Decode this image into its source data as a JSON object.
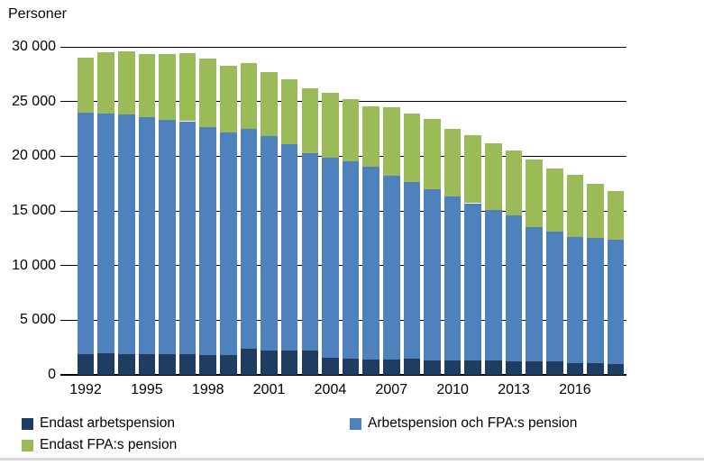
{
  "chart_data": {
    "type": "bar",
    "stacked": true,
    "ylabel": "Personer",
    "categories": [
      1992,
      1993,
      1994,
      1995,
      1996,
      1997,
      1998,
      1999,
      2000,
      2001,
      2002,
      2003,
      2004,
      2005,
      2006,
      2007,
      2008,
      2009,
      2010,
      2011,
      2012,
      2013,
      2014,
      2015,
      2016,
      2017,
      2018
    ],
    "x_tick_labels": [
      "1992",
      "1995",
      "1998",
      "2001",
      "2004",
      "2007",
      "2010",
      "2013",
      "2016"
    ],
    "x_tick_every": 3,
    "series": [
      {
        "name": "Endast arbetspension",
        "color": "#1F3C61",
        "values": [
          1900,
          2000,
          1900,
          1900,
          1900,
          1900,
          1800,
          1800,
          2400,
          2200,
          2200,
          2200,
          1600,
          1500,
          1400,
          1400,
          1500,
          1300,
          1300,
          1300,
          1300,
          1200,
          1200,
          1200,
          1100,
          1100,
          1000
        ]
      },
      {
        "name": "Arbetspension och FPA:s pension",
        "color": "#4F81BD",
        "values": [
          22100,
          21900,
          21900,
          21700,
          21400,
          21300,
          20900,
          20400,
          20100,
          19600,
          18900,
          18100,
          18300,
          18000,
          17600,
          16800,
          16100,
          15700,
          15000,
          14400,
          13800,
          13400,
          12300,
          11900,
          11500,
          11400,
          11400
        ]
      },
      {
        "name": "Endast FPA:s pension",
        "color": "#9BBB59",
        "values": [
          5000,
          5600,
          5800,
          5700,
          6000,
          6200,
          6200,
          6100,
          6000,
          5900,
          5900,
          5900,
          5900,
          5700,
          5600,
          6300,
          6300,
          6400,
          6200,
          6200,
          6100,
          5900,
          6200,
          5800,
          5700,
          5000,
          4400
        ]
      }
    ],
    "ylim": [
      0,
      30000
    ],
    "ytick_interval": 5000,
    "y_tick_labels": [
      "0",
      "5 000",
      "10 000",
      "15 000",
      "20 000",
      "25 000",
      "30 000"
    ],
    "grid": true,
    "legend_position": "bottom"
  }
}
